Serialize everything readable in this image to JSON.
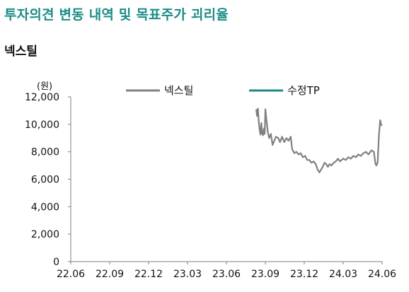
{
  "header": {
    "title": "투자의견 변동 내역 및 목표주가 괴리율",
    "subtitle": "넥스틸"
  },
  "colors": {
    "title": "#1a8c85",
    "price_line": "#808080",
    "target_line": "#1a8c85",
    "axis": "#7f7f7f"
  },
  "chart_data": {
    "type": "line",
    "title": "",
    "unit_label": "(원)",
    "xlabel": "",
    "ylabel": "",
    "x_ticks": [
      "22.06",
      "22.09",
      "22.12",
      "23.03",
      "23.06",
      "23.09",
      "23.12",
      "24.03",
      "24.06"
    ],
    "y_ticks": [
      "0",
      "2,000",
      "4,000",
      "6,000",
      "8,000",
      "10,000",
      "12,000"
    ],
    "ylim": [
      0,
      12000
    ],
    "xlim": [
      "2022-06",
      "2024-06"
    ],
    "grid": false,
    "legend_position": "top-center",
    "series": [
      {
        "name": "넥스틸",
        "color": "#808080",
        "points": [
          [
            "2023-08-10",
            11100
          ],
          [
            "2023-08-12",
            10600
          ],
          [
            "2023-08-14",
            11150
          ],
          [
            "2023-08-16",
            10200
          ],
          [
            "2023-08-18",
            9600
          ],
          [
            "2023-08-20",
            9250
          ],
          [
            "2023-08-22",
            10100
          ],
          [
            "2023-08-24",
            9300
          ],
          [
            "2023-08-26",
            9200
          ],
          [
            "2023-08-28",
            9700
          ],
          [
            "2023-08-30",
            9300
          ],
          [
            "2023-09-01",
            11100
          ],
          [
            "2023-09-04",
            10200
          ],
          [
            "2023-09-07",
            9400
          ],
          [
            "2023-09-10",
            9000
          ],
          [
            "2023-09-14",
            9300
          ],
          [
            "2023-09-18",
            8500
          ],
          [
            "2023-09-22",
            8800
          ],
          [
            "2023-09-26",
            9100
          ],
          [
            "2023-10-01",
            9000
          ],
          [
            "2023-10-05",
            8700
          ],
          [
            "2023-10-10",
            9100
          ],
          [
            "2023-10-15",
            8700
          ],
          [
            "2023-10-20",
            9000
          ],
          [
            "2023-10-25",
            8800
          ],
          [
            "2023-10-30",
            9100
          ],
          [
            "2023-11-03",
            8200
          ],
          [
            "2023-11-08",
            7900
          ],
          [
            "2023-11-13",
            8000
          ],
          [
            "2023-11-18",
            7800
          ],
          [
            "2023-11-23",
            7900
          ],
          [
            "2023-11-28",
            7600
          ],
          [
            "2023-12-03",
            7700
          ],
          [
            "2023-12-08",
            7400
          ],
          [
            "2023-12-13",
            7400
          ],
          [
            "2023-12-18",
            7200
          ],
          [
            "2023-12-23",
            7300
          ],
          [
            "2023-12-28",
            7100
          ],
          [
            "2024-01-02",
            6700
          ],
          [
            "2024-01-06",
            6500
          ],
          [
            "2024-01-10",
            6700
          ],
          [
            "2024-01-14",
            6900
          ],
          [
            "2024-01-18",
            7200
          ],
          [
            "2024-01-22",
            7100
          ],
          [
            "2024-01-26",
            6900
          ],
          [
            "2024-01-30",
            7100
          ],
          [
            "2024-02-04",
            7000
          ],
          [
            "2024-02-09",
            7200
          ],
          [
            "2024-02-14",
            7300
          ],
          [
            "2024-02-19",
            7500
          ],
          [
            "2024-02-24",
            7300
          ],
          [
            "2024-03-01",
            7500
          ],
          [
            "2024-03-07",
            7400
          ],
          [
            "2024-03-13",
            7600
          ],
          [
            "2024-03-19",
            7500
          ],
          [
            "2024-03-25",
            7700
          ],
          [
            "2024-03-31",
            7600
          ],
          [
            "2024-04-06",
            7800
          ],
          [
            "2024-04-12",
            7700
          ],
          [
            "2024-04-18",
            7900
          ],
          [
            "2024-04-24",
            8000
          ],
          [
            "2024-04-30",
            7800
          ],
          [
            "2024-05-06",
            8100
          ],
          [
            "2024-05-12",
            8000
          ],
          [
            "2024-05-16",
            7100
          ],
          [
            "2024-05-18",
            7000
          ],
          [
            "2024-05-21",
            7200
          ],
          [
            "2024-05-24",
            9200
          ],
          [
            "2024-05-27",
            10300
          ],
          [
            "2024-05-29",
            10000
          ],
          [
            "2024-05-31",
            9900
          ]
        ]
      },
      {
        "name": "수정TP",
        "color": "#1a8c85",
        "points": []
      }
    ]
  }
}
